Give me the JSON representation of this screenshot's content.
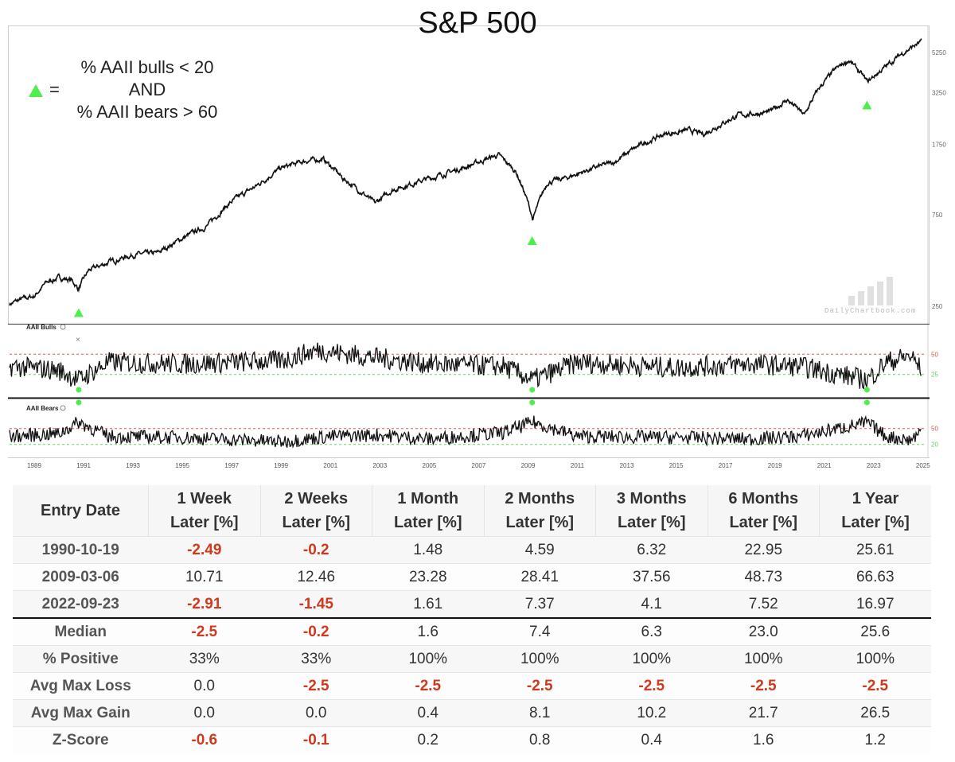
{
  "title": "S&P 500",
  "legend": {
    "lines": [
      "% AAII bulls < 20",
      "AND",
      "% AAII bears > 60"
    ],
    "equals": "="
  },
  "watermark": "DailyChartbook.com",
  "colors": {
    "line": "#111111",
    "marker": "#4cef4c",
    "negative": "#d0391c",
    "ref_red": "#e05555",
    "ref_green": "#5fd35f"
  },
  "chart_data": [
    {
      "type": "line",
      "name": "S&P 500",
      "title": "S&P 500",
      "y_scale": "log",
      "y_ticks": [
        250,
        750,
        1750,
        3250,
        5250
      ],
      "x": [
        1988.0,
        1988.5,
        1989.0,
        1989.5,
        1990.0,
        1990.5,
        1990.8,
        1991.2,
        1992.0,
        1993.0,
        1994.0,
        1995.0,
        1996.0,
        1997.0,
        1998.0,
        1999.0,
        2000.0,
        2000.7,
        2001.5,
        2002.8,
        2003.5,
        2004.5,
        2005.5,
        2006.5,
        2007.5,
        2007.8,
        2008.5,
        2009.2,
        2009.8,
        2010.5,
        2011.5,
        2012.5,
        2013.5,
        2014.5,
        2015.5,
        2016.1,
        2016.8,
        2017.5,
        2018.8,
        2019.5,
        2020.2,
        2020.8,
        2021.5,
        2022.0,
        2022.75,
        2023.5,
        2024.2,
        2024.9
      ],
      "y": [
        255,
        270,
        280,
        330,
        350,
        340,
        305,
        380,
        420,
        460,
        470,
        560,
        650,
        870,
        1050,
        1300,
        1420,
        1450,
        1150,
        850,
        1000,
        1100,
        1200,
        1320,
        1480,
        1520,
        1250,
        700,
        1100,
        1150,
        1280,
        1400,
        1700,
        1950,
        2050,
        1950,
        2200,
        2450,
        2550,
        2950,
        2450,
        3400,
        4300,
        4750,
        3650,
        4400,
        5200,
        5900
      ]
    },
    {
      "type": "line",
      "name": "AAII Bulls",
      "reference_lines": [
        50,
        25
      ],
      "x": [
        1988.0,
        1990.0,
        1990.8,
        1992.0,
        1995.0,
        1999.0,
        2000.5,
        2003.0,
        2005.0,
        2008.0,
        2009.2,
        2011.0,
        2015.0,
        2018.0,
        2020.0,
        2022.75,
        2023.5,
        2024.5,
        2024.9
      ],
      "y": [
        35,
        30,
        18,
        40,
        38,
        42,
        55,
        45,
        38,
        35,
        18,
        40,
        33,
        38,
        35,
        18,
        40,
        48,
        32
      ]
    },
    {
      "type": "line",
      "name": "AAII Bears",
      "reference_lines": [
        50,
        20
      ],
      "x": [
        1988.0,
        1990.0,
        1990.8,
        1992.0,
        1995.0,
        1999.0,
        2001.0,
        2003.0,
        2005.0,
        2008.0,
        2009.2,
        2011.0,
        2015.0,
        2018.0,
        2020.0,
        2022.75,
        2023.5,
        2024.5,
        2024.9
      ],
      "y": [
        35,
        40,
        62,
        35,
        33,
        25,
        35,
        38,
        30,
        42,
        62,
        35,
        33,
        30,
        35,
        61,
        35,
        28,
        45
      ]
    }
  ],
  "signals": [
    "1990-10-19",
    "2009-03-06",
    "2022-09-23"
  ],
  "signal_years": [
    1990.8,
    2009.17,
    2022.73
  ],
  "x_axis_years": [
    "1989",
    "1991",
    "1993",
    "1995",
    "1997",
    "1999",
    "2001",
    "2003",
    "2005",
    "2007",
    "2009",
    "2011",
    "2013",
    "2015",
    "2017",
    "2019",
    "2021",
    "2023",
    "2025"
  ],
  "panels": {
    "bulls_label": "AAII Bulls",
    "bears_label": "AAII Bears",
    "bulls_ticks": [
      "50",
      "25"
    ],
    "bears_ticks": [
      "50",
      "20"
    ]
  },
  "table": {
    "headers": [
      [
        "Entry Date"
      ],
      [
        "1 Week",
        "Later [%]"
      ],
      [
        "2 Weeks",
        "Later [%]"
      ],
      [
        "1 Month",
        "Later [%]"
      ],
      [
        "2 Months",
        "Later [%]"
      ],
      [
        "3 Months",
        "Later [%]"
      ],
      [
        "6 Months",
        "Later [%]"
      ],
      [
        "1 Year",
        "Later [%]"
      ]
    ],
    "rows": [
      [
        "1990-10-19",
        "-2.49",
        "-0.2",
        "1.48",
        "4.59",
        "6.32",
        "22.95",
        "25.61"
      ],
      [
        "2009-03-06",
        "10.71",
        "12.46",
        "23.28",
        "28.41",
        "37.56",
        "48.73",
        "66.63"
      ],
      [
        "2022-09-23",
        "-2.91",
        "-1.45",
        "1.61",
        "7.37",
        "4.1",
        "7.52",
        "16.97"
      ],
      [
        "Median",
        "-2.5",
        "-0.2",
        "1.6",
        "7.4",
        "6.3",
        "23.0",
        "25.6"
      ],
      [
        "% Positive",
        "33%",
        "33%",
        "100%",
        "100%",
        "100%",
        "100%",
        "100%"
      ],
      [
        "Avg Max Loss",
        "0.0",
        "-2.5",
        "-2.5",
        "-2.5",
        "-2.5",
        "-2.5",
        "-2.5"
      ],
      [
        "Avg Max Gain",
        "0.0",
        "0.0",
        "0.4",
        "8.1",
        "10.2",
        "21.7",
        "26.5"
      ],
      [
        "Z-Score",
        "-0.6",
        "-0.1",
        "0.2",
        "0.8",
        "0.4",
        "1.6",
        "1.2"
      ]
    ]
  }
}
